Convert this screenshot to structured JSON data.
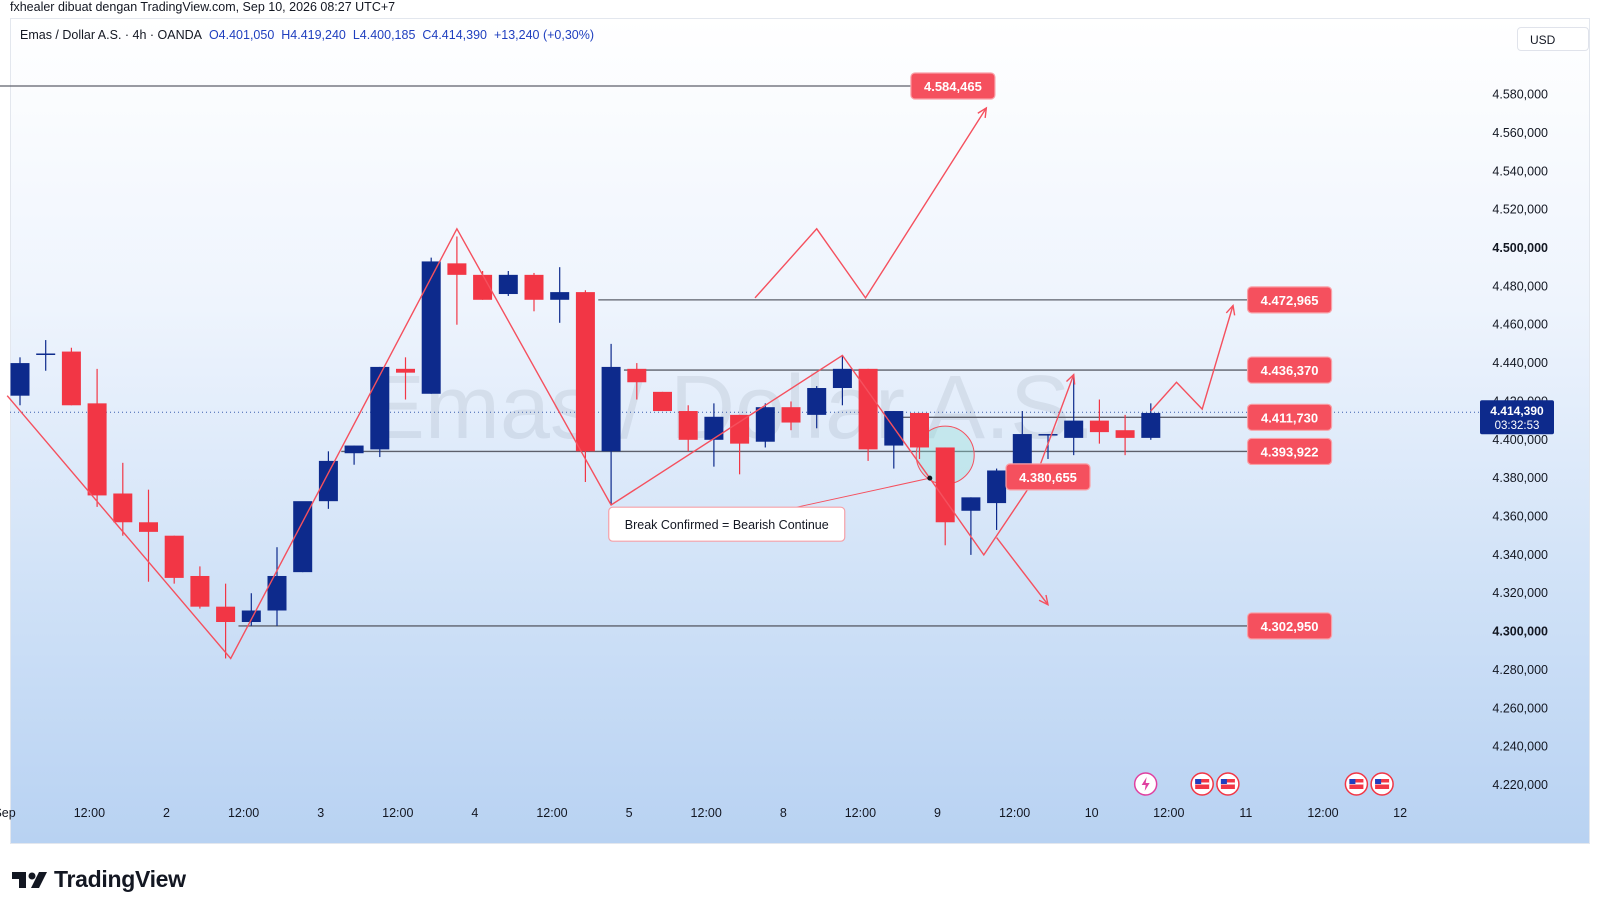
{
  "credit": "fxhealer dibuat dengan TradingView.com, Sep 10, 2026 08:27 UTC+7",
  "legend": {
    "symbol": "Emas / Dollar A.S. · 4h · OANDA",
    "open": "O4.401,050",
    "high": "H4.419,240",
    "low": "L4.400,185",
    "close": "C4.414,390",
    "change": "+13,240 (+0,30%)"
  },
  "currency": "USD",
  "watermark": "Emas / Dollar A.S.",
  "brand": "TradingView",
  "colors": {
    "up": "#0d2a8c",
    "down": "#f23645",
    "annotation": "#f5505e",
    "level_line": "#5d606b"
  },
  "chart_data": {
    "type": "candlestick",
    "timeframe": "4h",
    "y_axis": {
      "ylim": [
        4210,
        4600
      ],
      "ticks": [
        {
          "v": 4580,
          "t": "4.580,000"
        },
        {
          "v": 4560,
          "t": "4.560,000"
        },
        {
          "v": 4540,
          "t": "4.540,000"
        },
        {
          "v": 4520,
          "t": "4.520,000"
        },
        {
          "v": 4500,
          "t": "4.500,000",
          "bold": true
        },
        {
          "v": 4480,
          "t": "4.480,000"
        },
        {
          "v": 4460,
          "t": "4.460,000"
        },
        {
          "v": 4440,
          "t": "4.440,000"
        },
        {
          "v": 4420,
          "t": "4.420,000"
        },
        {
          "v": 4400,
          "t": "4.400,000"
        },
        {
          "v": 4380,
          "t": "4.380,000"
        },
        {
          "v": 4360,
          "t": "4.360,000"
        },
        {
          "v": 4340,
          "t": "4.340,000"
        },
        {
          "v": 4320,
          "t": "4.320,000"
        },
        {
          "v": 4300,
          "t": "4.300,000",
          "bold": true
        },
        {
          "v": 4280,
          "t": "4.280,000"
        },
        {
          "v": 4260,
          "t": "4.260,000"
        },
        {
          "v": 4240,
          "t": "4.240,000"
        },
        {
          "v": 4220,
          "t": "4.220,000"
        }
      ]
    },
    "x_axis": {
      "ticks": [
        {
          "i": -0.6,
          "t": "Sep"
        },
        {
          "i": 2.7,
          "t": "12:00"
        },
        {
          "i": 5.7,
          "t": "2"
        },
        {
          "i": 8.7,
          "t": "12:00"
        },
        {
          "i": 11.7,
          "t": "3"
        },
        {
          "i": 14.7,
          "t": "12:00"
        },
        {
          "i": 17.7,
          "t": "4"
        },
        {
          "i": 20.7,
          "t": "12:00"
        },
        {
          "i": 23.7,
          "t": "5"
        },
        {
          "i": 26.7,
          "t": "12:00"
        },
        {
          "i": 29.7,
          "t": "8"
        },
        {
          "i": 32.7,
          "t": "12:00"
        },
        {
          "i": 35.7,
          "t": "9"
        },
        {
          "i": 38.7,
          "t": "12:00"
        },
        {
          "i": 41.7,
          "t": "10"
        },
        {
          "i": 44.7,
          "t": "12:00"
        },
        {
          "i": 47.7,
          "t": "11"
        },
        {
          "i": 50.7,
          "t": "12:00"
        },
        {
          "i": 53.7,
          "t": "12"
        }
      ]
    },
    "candles": [
      {
        "o": 4423,
        "h": 4443,
        "l": 4418,
        "c": 4440
      },
      {
        "o": 4445,
        "h": 4452,
        "l": 4436,
        "c": 4445
      },
      {
        "o": 4446,
        "h": 4448,
        "l": 4418,
        "c": 4418
      },
      {
        "o": 4419,
        "h": 4437,
        "l": 4365,
        "c": 4371
      },
      {
        "o": 4372,
        "h": 4388,
        "l": 4350,
        "c": 4357
      },
      {
        "o": 4357,
        "h": 4374,
        "l": 4326,
        "c": 4352
      },
      {
        "o": 4350,
        "h": 4350,
        "l": 4325,
        "c": 4328
      },
      {
        "o": 4329,
        "h": 4334,
        "l": 4312,
        "c": 4313
      },
      {
        "o": 4313,
        "h": 4325,
        "l": 4286,
        "c": 4305
      },
      {
        "o": 4305,
        "h": 4320,
        "l": 4303,
        "c": 4311
      },
      {
        "o": 4311,
        "h": 4344,
        "l": 4303,
        "c": 4329
      },
      {
        "o": 4331,
        "h": 4367,
        "l": 4331,
        "c": 4368
      },
      {
        "o": 4368,
        "h": 4394,
        "l": 4364,
        "c": 4389
      },
      {
        "o": 4393,
        "h": 4397,
        "l": 4387,
        "c": 4397
      },
      {
        "o": 4395,
        "h": 4438,
        "l": 4391,
        "c": 4438
      },
      {
        "o": 4437,
        "h": 4443,
        "l": 4421,
        "c": 4435
      },
      {
        "o": 4424,
        "h": 4495,
        "l": 4424,
        "c": 4493
      },
      {
        "o": 4492,
        "h": 4506,
        "l": 4460,
        "c": 4486
      },
      {
        "o": 4486,
        "h": 4488,
        "l": 4473,
        "c": 4473
      },
      {
        "o": 4476,
        "h": 4488,
        "l": 4475,
        "c": 4486
      },
      {
        "o": 4486,
        "h": 4487,
        "l": 4467,
        "c": 4473
      },
      {
        "o": 4473,
        "h": 4490,
        "l": 4461,
        "c": 4477
      },
      {
        "o": 4477,
        "h": 4478,
        "l": 4378,
        "c": 4394
      },
      {
        "o": 4394,
        "h": 4450,
        "l": 4366,
        "c": 4438
      },
      {
        "o": 4437,
        "h": 4440,
        "l": 4421,
        "c": 4430
      },
      {
        "o": 4425,
        "h": 4425,
        "l": 4415,
        "c": 4415
      },
      {
        "o": 4415,
        "h": 4418,
        "l": 4394,
        "c": 4400
      },
      {
        "o": 4400,
        "h": 4419,
        "l": 4386,
        "c": 4412
      },
      {
        "o": 4413,
        "h": 4413,
        "l": 4382,
        "c": 4398
      },
      {
        "o": 4399,
        "h": 4419,
        "l": 4396,
        "c": 4417
      },
      {
        "o": 4417,
        "h": 4420,
        "l": 4405,
        "c": 4409
      },
      {
        "o": 4413,
        "h": 4428,
        "l": 4406,
        "c": 4427
      },
      {
        "o": 4427,
        "h": 4444,
        "l": 4418,
        "c": 4437
      },
      {
        "o": 4437,
        "h": 4437,
        "l": 4389,
        "c": 4395
      },
      {
        "o": 4397,
        "h": 4415,
        "l": 4385,
        "c": 4415
      },
      {
        "o": 4414,
        "h": 4414,
        "l": 4390,
        "c": 4396
      },
      {
        "o": 4396,
        "h": 4396,
        "l": 4345,
        "c": 4357
      },
      {
        "o": 4363,
        "h": 4370,
        "l": 4340,
        "c": 4370
      },
      {
        "o": 4367,
        "h": 4385,
        "l": 4353,
        "c": 4384
      },
      {
        "o": 4384,
        "h": 4415,
        "l": 4384,
        "c": 4403
      },
      {
        "o": 4403,
        "h": 4403,
        "l": 4390,
        "c": 4403
      },
      {
        "o": 4401,
        "h": 4434,
        "l": 4392,
        "c": 4410
      },
      {
        "o": 4410,
        "h": 4421,
        "l": 4398,
        "c": 4404
      },
      {
        "o": 4405,
        "h": 4413,
        "l": 4392,
        "c": 4401
      },
      {
        "o": 4401,
        "h": 4419,
        "l": 4400,
        "c": 4414
      }
    ],
    "levels": [
      {
        "price": 4584.465,
        "label": "4.584,465",
        "from_i": -1,
        "to_i": 36.3,
        "tag_i": 36.3
      },
      {
        "price": 4472.965,
        "label": "4.472,965",
        "from_i": 22.5,
        "to_i": 48.6,
        "tag_i": 49.4
      },
      {
        "price": 4436.37,
        "label": "4.436,370",
        "from_i": 23.5,
        "to_i": 48.6,
        "tag_i": 49.4
      },
      {
        "price": 4411.73,
        "label": "4.411,730",
        "from_i": 33.7,
        "to_i": 48.6,
        "tag_i": 49.4
      },
      {
        "price": 4393.922,
        "label": "4.393,922",
        "from_i": 12.5,
        "to_i": 48.6,
        "tag_i": 49.4
      },
      {
        "price": 4302.95,
        "label": "4.302,950",
        "from_i": 8.5,
        "to_i": 48.6,
        "tag_i": 49.4
      }
    ],
    "price_tag": {
      "price": 4380.655,
      "label": "4.380,655",
      "i": 40.0
    },
    "current_price": {
      "price": 4414.39,
      "label": "4.414,390",
      "countdown": "03:32:53"
    },
    "annotation_text": "Break Confirmed = Bearish Continue",
    "annotation_anchor": {
      "i": 27.5,
      "price": 4356
    },
    "annotation_target": {
      "i": 35.4,
      "price": 4380
    },
    "highlight_circle": {
      "i": 36.0,
      "price": 4392
    },
    "zigzag_paths": [
      [
        {
          "i": -0.5,
          "p": 4423
        },
        {
          "i": 8.2,
          "p": 4286
        },
        {
          "i": 17.0,
          "p": 4510
        },
        {
          "i": 23.0,
          "p": 4366
        },
        {
          "i": 32.0,
          "p": 4444
        },
        {
          "i": 35.4,
          "p": 4380
        },
        {
          "i": 37.5,
          "p": 4340
        },
        {
          "i": 39.5,
          "p": 4380
        },
        {
          "i": 41.0,
          "p": 4434
        }
      ],
      [
        {
          "i": 28.6,
          "p": 4474
        },
        {
          "i": 31.0,
          "p": 4510
        },
        {
          "i": 32.9,
          "p": 4474
        },
        {
          "i": 37.6,
          "p": 4573
        }
      ],
      [
        {
          "i": 44.0,
          "p": 4415
        },
        {
          "i": 45.0,
          "p": 4430
        },
        {
          "i": 46.0,
          "p": 4416
        },
        {
          "i": 47.2,
          "p": 4470
        }
      ],
      [
        {
          "i": 38.0,
          "p": 4349
        },
        {
          "i": 40.0,
          "p": 4314
        }
      ]
    ],
    "event_icons": [
      {
        "i": 43.8,
        "kind": "lightning"
      },
      {
        "i": 46.0,
        "kind": "us-flag"
      },
      {
        "i": 47.0,
        "kind": "us-flag"
      },
      {
        "i": 52.0,
        "kind": "us-flag"
      },
      {
        "i": 53.0,
        "kind": "us-flag"
      }
    ]
  }
}
